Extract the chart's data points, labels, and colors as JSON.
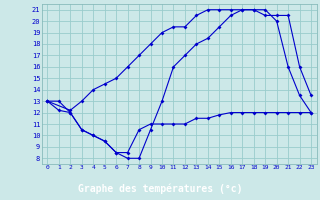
{
  "title": "Graphe des températures (°c)",
  "bg_color": "#cce8e8",
  "plot_bg_color": "#cce8e8",
  "xlabel_bg_color": "#0000bb",
  "xlabel_text_color": "#ffffff",
  "line_color": "#0000cc",
  "grid_color": "#99cccc",
  "xlim": [
    -0.5,
    23.5
  ],
  "ylim": [
    7.5,
    21.5
  ],
  "xticks": [
    0,
    1,
    2,
    3,
    4,
    5,
    6,
    7,
    8,
    9,
    10,
    11,
    12,
    13,
    14,
    15,
    16,
    17,
    18,
    19,
    20,
    21,
    22,
    23
  ],
  "yticks": [
    8,
    9,
    10,
    11,
    12,
    13,
    14,
    15,
    16,
    17,
    18,
    19,
    20,
    21
  ],
  "line1_x": [
    0,
    1,
    2,
    3,
    4,
    5,
    6,
    7,
    8,
    9,
    10,
    11,
    12,
    13,
    14,
    15,
    16,
    17,
    18,
    19,
    20,
    21,
    22,
    23
  ],
  "line1_y": [
    13,
    13,
    12,
    10.5,
    10,
    9.5,
    8.5,
    8.5,
    10.5,
    11,
    11,
    11,
    11,
    11.5,
    11.5,
    11.8,
    12,
    12,
    12,
    12,
    12,
    12,
    12,
    12
  ],
  "line2_x": [
    0,
    1,
    2,
    3,
    4,
    5,
    6,
    7,
    8,
    9,
    10,
    11,
    12,
    13,
    14,
    15,
    16,
    17,
    18,
    19,
    20,
    21,
    22,
    23
  ],
  "line2_y": [
    13,
    12.2,
    12,
    10.5,
    10,
    9.5,
    8.5,
    8,
    8,
    10.5,
    13,
    16,
    17,
    18,
    18.5,
    19.5,
    20.5,
    21,
    21,
    21,
    20,
    16,
    13.5,
    12
  ],
  "line3_x": [
    0,
    2,
    3,
    4,
    5,
    6,
    7,
    8,
    9,
    10,
    11,
    12,
    13,
    14,
    15,
    16,
    17,
    18,
    19,
    20,
    21,
    22,
    23
  ],
  "line3_y": [
    13,
    12.2,
    13,
    14,
    14.5,
    15,
    16,
    17,
    18,
    19,
    19.5,
    19.5,
    20.5,
    21,
    21,
    21,
    21,
    21,
    20.5,
    20.5,
    20.5,
    16,
    13.5
  ]
}
